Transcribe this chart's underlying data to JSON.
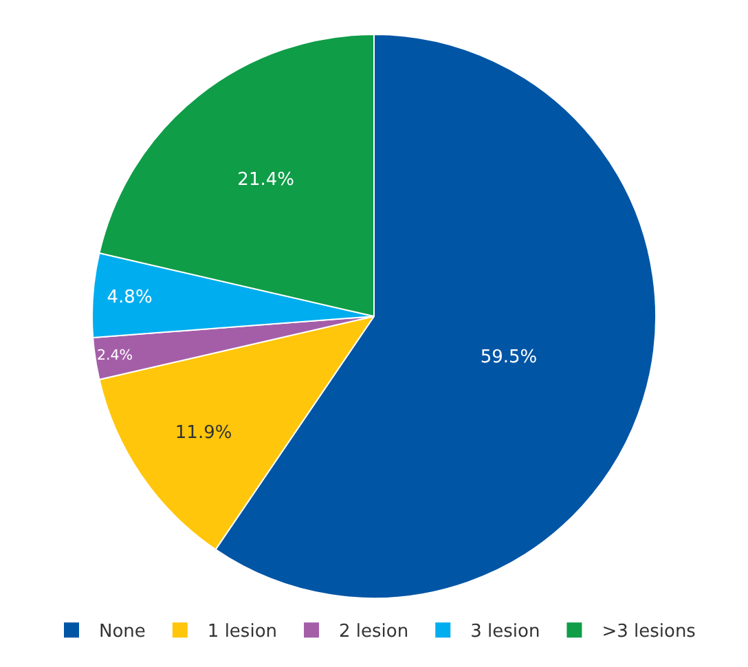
{
  "chart_data": {
    "type": "pie",
    "categories": [
      "None",
      "1 lesion",
      "2 lesion",
      "3 lesion",
      ">3 lesions"
    ],
    "values": [
      59.5,
      11.9,
      2.4,
      4.8,
      21.4
    ],
    "value_labels": [
      "59.5%",
      "11.9%",
      "2.4%",
      "4.8%",
      "21.4%"
    ],
    "colors": [
      "#0055a5",
      "#ffc60b",
      "#a45ea8",
      "#00adef",
      "#0f9d48"
    ],
    "legend": "bottom"
  }
}
